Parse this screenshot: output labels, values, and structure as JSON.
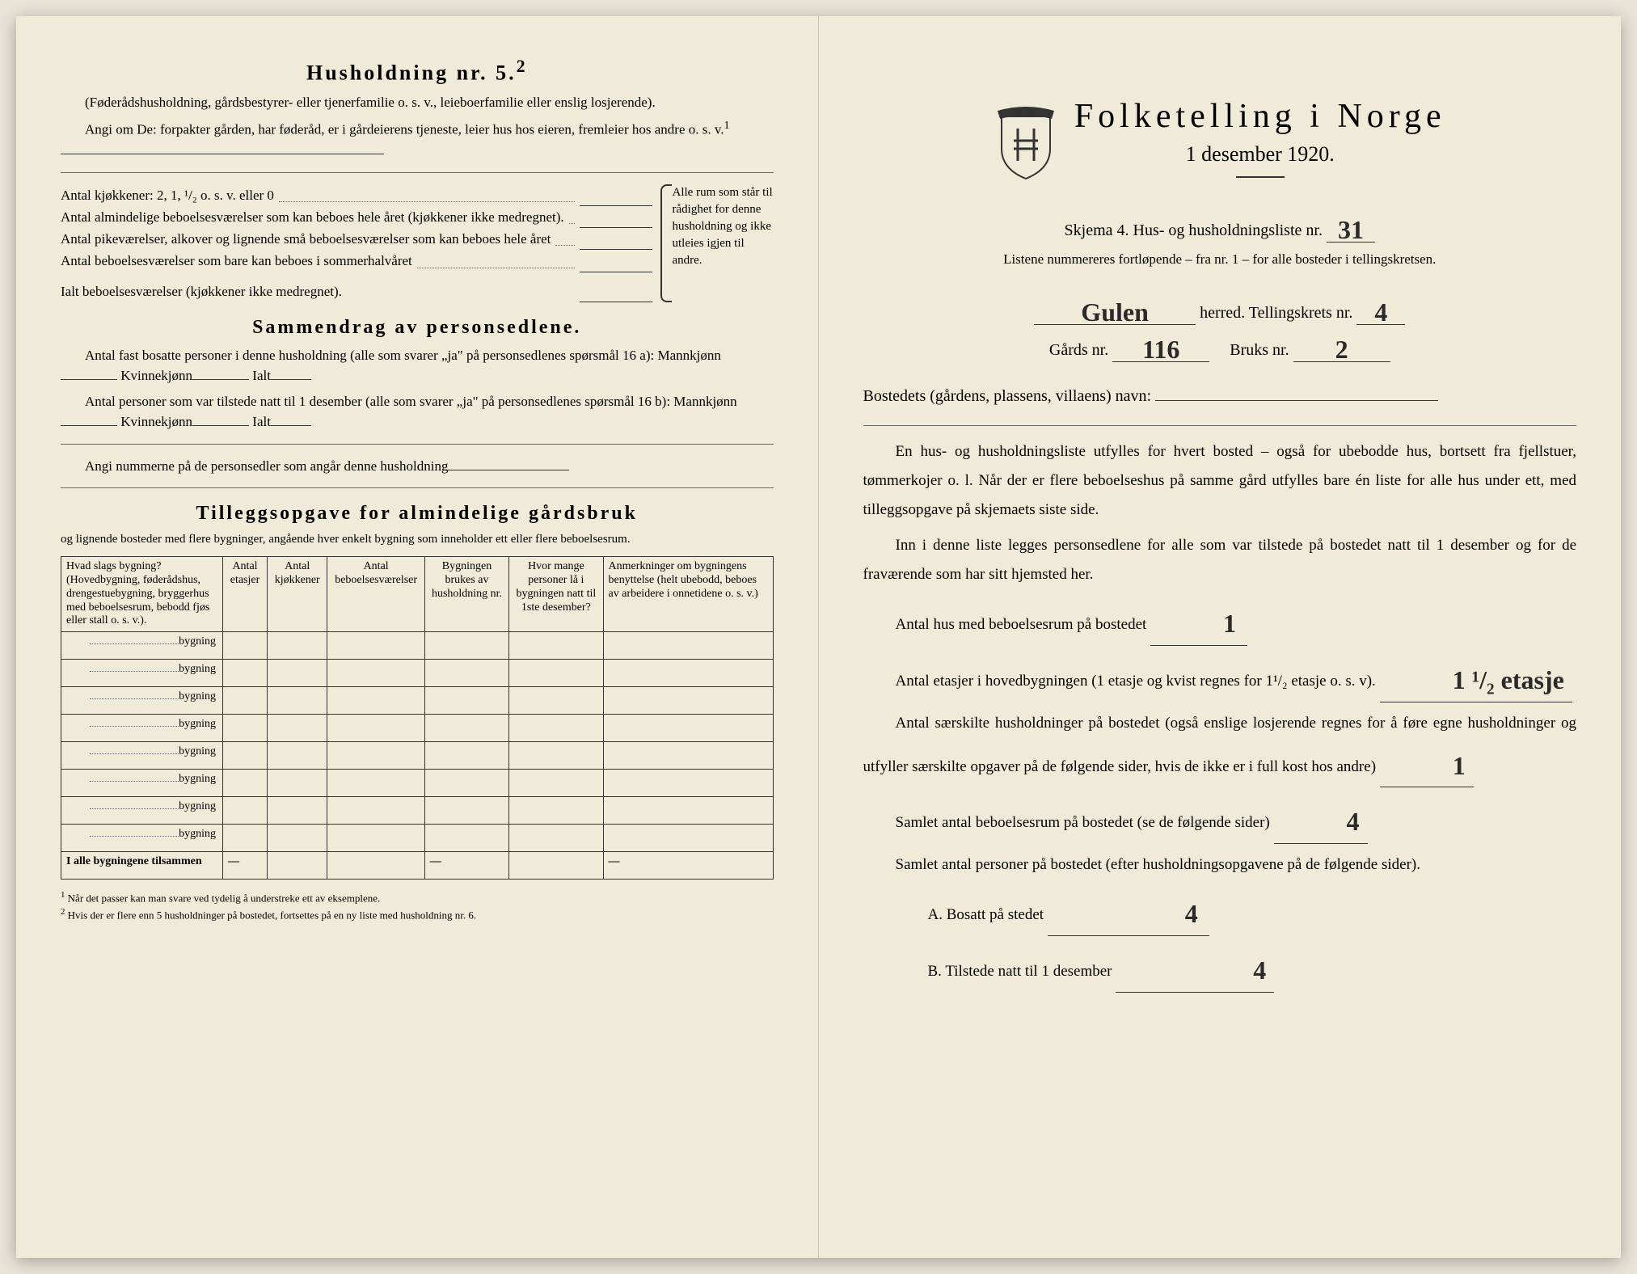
{
  "left": {
    "husholdning_title": "Husholdning nr. 5.",
    "husholdning_sup": "2",
    "husholdning_sub": "(Føderådshusholdning, gårdsbestyrer- eller tjenerfamilie o. s. v., leieboerfamilie eller enslig losjerende).",
    "angi_line": "Angi om De: forpakter gården, har føderåd, er i gårdeierens tjeneste, leier hus hos eieren, fremleier hos andre o. s. v.",
    "angi_sup": "1",
    "kjokken_label": "Antal kjøkkener: 2, 1, ¹/₂ o. s. v. eller 0",
    "alm_label": "Antal almindelige beboelsesværelser som kan beboes hele året (kjøkkener ikke medregnet).",
    "pike_label": "Antal pikeværelser, alkover og lignende små beboelsesværelser som kan beboes hele året",
    "sommer_label": "Antal beboelsesværelser som bare kan beboes i sommerhalvåret",
    "ialt_label": "Ialt beboelsesværelser (kjøkkener ikke medregnet).",
    "brace_text": "Alle rum som står til rådighet for denne husholdning og ikke utleies igjen til andre.",
    "sammendrag_title": "Sammendrag av personsedlene.",
    "samm_line1": "Antal fast bosatte personer i denne husholdning (alle som svarer „ja\" på personsedlenes spørsmål 16 a): Mannkjønn",
    "samm_kvinne": "Kvinnekjønn",
    "samm_ialt": "Ialt",
    "samm_line2": "Antal personer som var tilstede natt til 1 desember (alle som svarer „ja\" på personsedlenes spørsmål 16 b): Mannkjønn",
    "angi_num": "Angi nummerne på de personsedler som angår denne husholdning",
    "tillegg_title": "Tilleggsopgave for almindelige gårdsbruk",
    "tillegg_sub": "og lignende bosteder med flere bygninger, angående hver enkelt bygning som inneholder ett eller flere beboelsesrum.",
    "table": {
      "columns": [
        "Hvad slags bygning?\n(Hovedbygning, føderådshus, drengestuebygning, bryggerhus med beboelsesrum, bebodd fjøs eller stall o. s. v.).",
        "Antal etasjer",
        "Antal kjøkkener",
        "Antal beboelsesværelser",
        "Bygningen brukes av husholdning nr.",
        "Hvor mange personer lå i bygningen natt til 1ste desember?",
        "Anmerkninger om bygningens benyttelse (helt ubebodd, beboes av arbeidere i onnetidene o. s. v.)"
      ],
      "row_label": "bygning",
      "row_count": 8,
      "sum_label": "I alle bygningene tilsammen"
    },
    "footnotes": [
      "Når det passer kan man svare ved tydelig å understreke ett av eksemplene.",
      "Hvis der er flere enn 5 husholdninger på bostedet, fortsettes på en ny liste med husholdning nr. 6."
    ]
  },
  "right": {
    "main_title": "Folketelling i Norge",
    "date": "1 desember 1920.",
    "skjema_prefix": "Skjema 4.  Hus- og husholdningsliste nr.",
    "liste_nr": "31",
    "listene_text": "Listene nummereres fortløpende – fra nr. 1 – for alle bosteder i tellingskretsen.",
    "herred_name": "Gulen",
    "herred_label": "herred.   Tellingskrets nr.",
    "krets_nr": "4",
    "gards_label": "Gårds nr.",
    "gards_nr": "116",
    "bruks_label": "Bruks nr.",
    "bruks_nr": "2",
    "bosted_label": "Bostedets (gårdens, plassens, villaens) navn:",
    "body1": "En hus- og husholdningsliste utfylles for hvert bosted – også for ubebodde hus, bortsett fra fjellstuer, tømmerkojer o. l.  Når der er flere beboelseshus på samme gård utfylles bare én liste for alle hus under ett, med tilleggsopgave på skjemaets siste side.",
    "body2": "Inn i denne liste legges personsedlene for alle som var tilstede på bostedet natt til 1 desember og for de fraværende som har sitt hjemsted her.",
    "antal_hus_label": "Antal hus med beboelsesrum på bostedet",
    "antal_hus": "1",
    "etasjer_label": "Antal etasjer i hovedbygningen (1 etasje og kvist regnes for 1¹/₂ etasje o. s. v).",
    "etasjer": "1 ¹/₂ etasje",
    "saerskilte_label": "Antal særskilte husholdninger på bostedet (også enslige losjerende regnes for å føre egne husholdninger og utfyller særskilte opgaver på de følgende sider, hvis de ikke er i full kost hos andre)",
    "saerskilte": "1",
    "samlet_beb_label": "Samlet antal beboelsesrum på bostedet (se de følgende sider)",
    "samlet_beb": "4",
    "samlet_pers_label": "Samlet antal personer på bostedet (efter husholdningsopgavene på de følgende sider).",
    "bosatt_label": "A.  Bosatt på stedet",
    "bosatt": "4",
    "tilstede_label": "B.  Tilstede natt til 1 desember",
    "tilstede": "4"
  }
}
